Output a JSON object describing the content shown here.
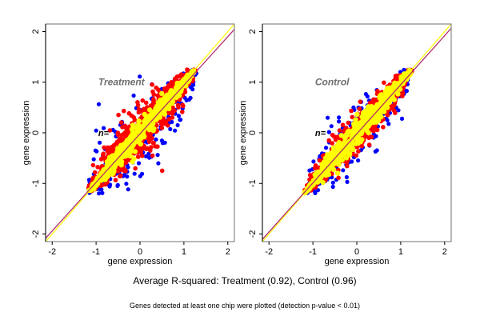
{
  "chart_data": [
    {
      "type": "scatter",
      "panel": "left",
      "title": "Treatment",
      "annotation": "n=",
      "xlabel": "gene expression",
      "ylabel": "gene expression",
      "xlim": [
        -2.15,
        2.15
      ],
      "ylim": [
        -2.15,
        2.15
      ],
      "xticks": [
        -2,
        -1,
        0,
        1,
        2
      ],
      "yticks": [
        -2,
        -1,
        0,
        1,
        2
      ],
      "grid": false,
      "r_squared": 0.92,
      "point_cloud": {
        "x_range": [
          -1.15,
          1.25
        ],
        "y_range": [
          -1.15,
          1.2
        ],
        "outer_spread": 0.55,
        "mid_spread": 0.32,
        "inner_spread": 0.09
      },
      "series": [
        {
          "name": "outer",
          "color": "#0000ff"
        },
        {
          "name": "middle",
          "color": "#ff0000"
        },
        {
          "name": "inner",
          "color": "#ffff00"
        }
      ],
      "reference_lines": [
        {
          "name": "identity",
          "slope": 1,
          "intercept": 0,
          "color": "#ffff00"
        },
        {
          "name": "fit",
          "slope": 0.96,
          "intercept": -0.02,
          "color": "#b0206a"
        }
      ]
    },
    {
      "type": "scatter",
      "panel": "right",
      "title": "Control",
      "annotation": "n=",
      "xlabel": "gene expression",
      "ylabel": "gene expression",
      "xlim": [
        -2.15,
        2.15
      ],
      "ylim": [
        -2.15,
        2.15
      ],
      "xticks": [
        -2,
        -1,
        0,
        1,
        2
      ],
      "yticks": [
        -2,
        -1,
        0,
        1,
        2
      ],
      "grid": false,
      "r_squared": 0.96,
      "point_cloud": {
        "x_range": [
          -1.2,
          1.25
        ],
        "y_range": [
          -1.15,
          1.2
        ],
        "outer_spread": 0.45,
        "mid_spread": 0.25,
        "inner_spread": 0.1
      },
      "series": [
        {
          "name": "outer",
          "color": "#0000ff"
        },
        {
          "name": "middle",
          "color": "#ff0000"
        },
        {
          "name": "inner",
          "color": "#ffff00"
        }
      ],
      "reference_lines": [
        {
          "name": "identity",
          "slope": 1,
          "intercept": 0,
          "color": "#ffff00"
        },
        {
          "name": "fit",
          "slope": 0.97,
          "intercept": -0.02,
          "color": "#b0206a"
        }
      ]
    }
  ],
  "caption": {
    "main": "Average R-squared: Treatment (0.92), Control (0.96)",
    "sub": "Genes detected at least one chip were plotted (detection p-value < 0.01)"
  }
}
